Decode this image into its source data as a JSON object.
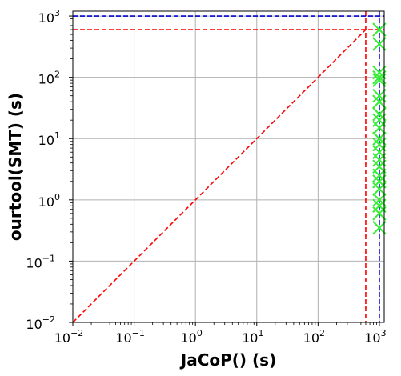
{
  "chart_data": {
    "type": "scatter",
    "xlabel": "JaCoP() (s)",
    "ylabel": "ourtool(SMT) (s)",
    "x_scale": "log",
    "y_scale": "log",
    "xlim": [
      0.01,
      1200
    ],
    "ylim": [
      0.01,
      1200
    ],
    "grid": true,
    "x_ticks": [
      {
        "value": 0.01,
        "base": "10",
        "exp": "−2"
      },
      {
        "value": 0.1,
        "base": "10",
        "exp": "−1"
      },
      {
        "value": 1,
        "base": "10",
        "exp": "0"
      },
      {
        "value": 10,
        "base": "10",
        "exp": "1"
      },
      {
        "value": 100,
        "base": "10",
        "exp": "2"
      },
      {
        "value": 1000,
        "base": "10",
        "exp": "3"
      }
    ],
    "y_ticks": [
      {
        "value": 0.01,
        "base": "10",
        "exp": "−2"
      },
      {
        "value": 0.1,
        "base": "10",
        "exp": "−1"
      },
      {
        "value": 1,
        "base": "10",
        "exp": "0"
      },
      {
        "value": 10,
        "base": "10",
        "exp": "1"
      },
      {
        "value": 100,
        "base": "10",
        "exp": "2"
      },
      {
        "value": 1000,
        "base": "10",
        "exp": "3"
      }
    ],
    "reference_lines": [
      {
        "kind": "diagonal",
        "from": [
          0.01,
          0.01
        ],
        "to": [
          600,
          600
        ],
        "color": "#ff0000",
        "style": "dashed"
      },
      {
        "kind": "vertical",
        "x": 600,
        "color": "#ff0000",
        "style": "dashed"
      },
      {
        "kind": "horizontal",
        "y": 600,
        "color": "#ff0000",
        "style": "dashed"
      },
      {
        "kind": "vertical",
        "x": 1000,
        "color": "#0000cc",
        "style": "dashed"
      },
      {
        "kind": "horizontal",
        "y": 1000,
        "color": "#0000cc",
        "style": "dashed"
      }
    ],
    "series": [
      {
        "marker": "x",
        "color": "#33ee33",
        "points": [
          {
            "x": 1000,
            "y": 600
          },
          {
            "x": 1000,
            "y": 350
          },
          {
            "x": 1000,
            "y": 120
          },
          {
            "x": 1000,
            "y": 100
          },
          {
            "x": 1000,
            "y": 90
          },
          {
            "x": 1000,
            "y": 50
          },
          {
            "x": 1000,
            "y": 40
          },
          {
            "x": 1000,
            "y": 25
          },
          {
            "x": 1000,
            "y": 20
          },
          {
            "x": 1000,
            "y": 15
          },
          {
            "x": 1000,
            "y": 10
          },
          {
            "x": 1000,
            "y": 8
          },
          {
            "x": 1000,
            "y": 6
          },
          {
            "x": 1000,
            "y": 4.5
          },
          {
            "x": 1000,
            "y": 3.5
          },
          {
            "x": 1000,
            "y": 2.5
          },
          {
            "x": 1000,
            "y": 2
          },
          {
            "x": 1000,
            "y": 1.5
          },
          {
            "x": 1000,
            "y": 1
          },
          {
            "x": 1000,
            "y": 0.8
          },
          {
            "x": 1000,
            "y": 0.6
          },
          {
            "x": 1000,
            "y": 0.35
          }
        ]
      }
    ]
  },
  "colors": {
    "grid": "#b0b0b0",
    "frame": "#000000",
    "marker": "#33ee33",
    "red_line": "#ff0000",
    "blue_line": "#0000cc"
  }
}
